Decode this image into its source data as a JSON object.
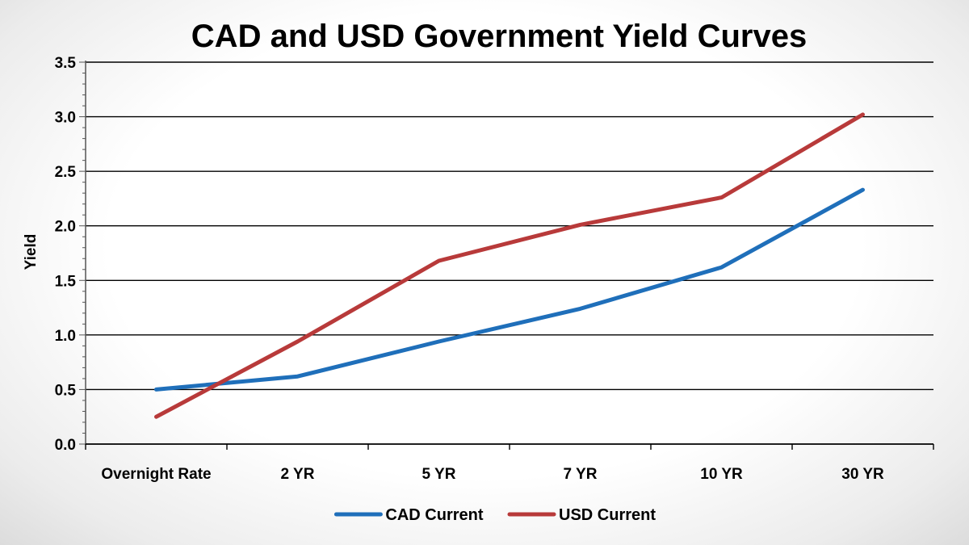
{
  "chart_data": {
    "type": "line",
    "title": "CAD and USD Government Yield Curves",
    "xlabel": "",
    "ylabel": "Yield",
    "categories": [
      "Overnight Rate",
      "2 YR",
      "5 YR",
      "7 YR",
      "10 YR",
      "30 YR"
    ],
    "ylim": [
      0,
      3.5
    ],
    "yticks": [
      "0.0",
      "0.5",
      "1.0",
      "1.5",
      "2.0",
      "2.5",
      "3.0",
      "3.5"
    ],
    "grid": true,
    "legend": "bottom",
    "series": [
      {
        "name": "CAD Current",
        "color": "#1f6fba",
        "values": [
          0.5,
          0.62,
          0.94,
          1.24,
          1.62,
          2.33
        ]
      },
      {
        "name": "USD Current",
        "color": "#b83a3a",
        "values": [
          0.25,
          0.94,
          1.68,
          2.01,
          2.26,
          3.02
        ]
      }
    ]
  }
}
